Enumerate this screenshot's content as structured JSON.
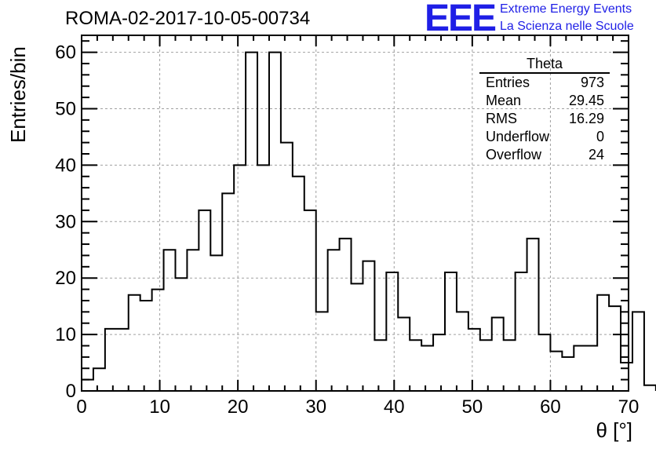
{
  "header": {
    "title": "ROMA-02-2017-10-05-00734",
    "logo_text": "EEE",
    "logo_line1": "Extreme Energy Events",
    "logo_line2": "La Scienza nelle Scuole"
  },
  "stats_box": {
    "title": "Theta",
    "rows": [
      {
        "label": "Entries",
        "value": "973"
      },
      {
        "label": "Mean",
        "value": "29.45"
      },
      {
        "label": "RMS",
        "value": "16.29"
      },
      {
        "label": "Underflow",
        "value": "0"
      },
      {
        "label": "Overflow",
        "value": "24"
      }
    ]
  },
  "chart_data": {
    "type": "bar",
    "style": "step-histogram",
    "xlabel": "θ [°]",
    "ylabel": "Entries/bin",
    "xlim": [
      0,
      70
    ],
    "ylim": [
      0,
      63
    ],
    "bin_width": 1.5,
    "bin_start": 0,
    "xticks": [
      0,
      10,
      20,
      30,
      40,
      50,
      60,
      70
    ],
    "yticks": [
      0,
      10,
      20,
      30,
      40,
      50,
      60
    ],
    "grid": true,
    "values": [
      2,
      4,
      11,
      11,
      17,
      16,
      18,
      25,
      20,
      25,
      32,
      24,
      35,
      40,
      60,
      40,
      60,
      44,
      38,
      32,
      14,
      25,
      27,
      19,
      23,
      9,
      21,
      13,
      9,
      8,
      10,
      21,
      14,
      11,
      9,
      13,
      9,
      21,
      27,
      10,
      7,
      6,
      8,
      8,
      17,
      15,
      5,
      14,
      1
    ]
  }
}
